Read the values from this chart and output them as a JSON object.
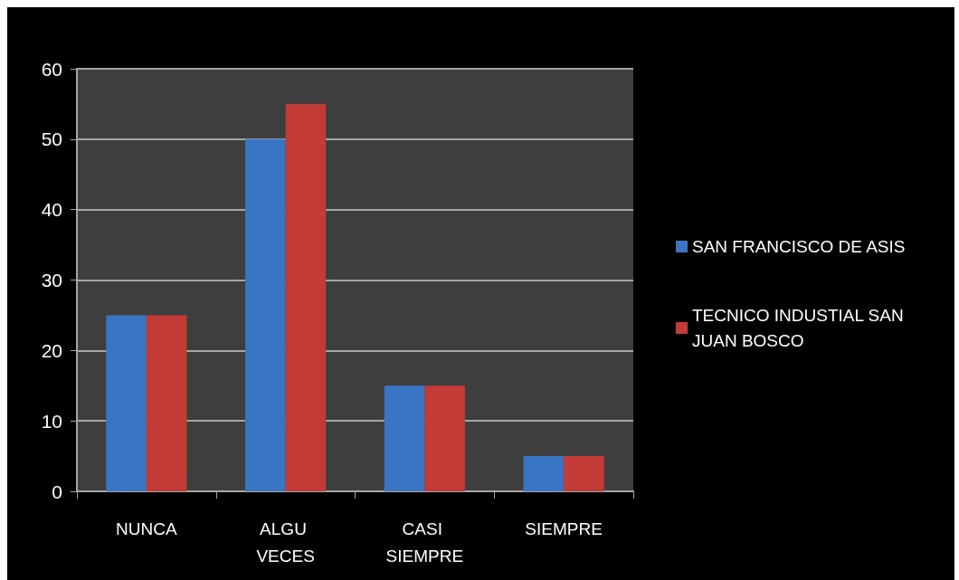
{
  "chart_data": {
    "type": "bar",
    "categories": [
      "NUNCA",
      "ALGU VECES",
      "CASI SIEMPRE",
      "SIEMPRE"
    ],
    "series": [
      {
        "name": "SAN FRANCISCO DE ASIS",
        "color": "#3a75c4",
        "values": [
          25,
          50,
          15,
          5
        ]
      },
      {
        "name": "TECNICO INDUSTIAL SAN JUAN BOSCO",
        "color": "#c33b36",
        "values": [
          25,
          55,
          15,
          5
        ]
      }
    ],
    "ylim": [
      0,
      60
    ],
    "yticks": [
      0,
      10,
      20,
      30,
      40,
      50,
      60
    ],
    "grid": "y",
    "legend": "right"
  }
}
